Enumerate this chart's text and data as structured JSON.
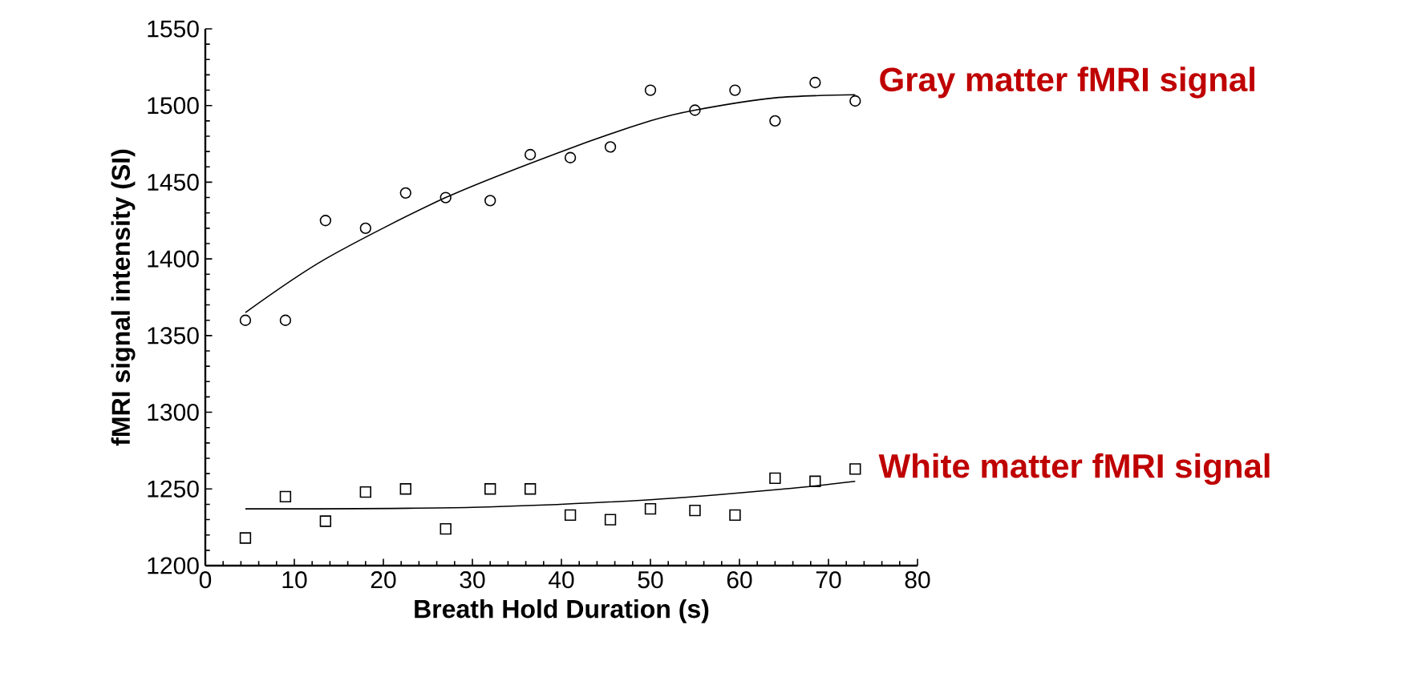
{
  "chart_data": {
    "type": "scatter",
    "xlabel": "Breath Hold Duration (s)",
    "ylabel": "fMRI signal intensity (SI)",
    "xlim": [
      0,
      80
    ],
    "xticks": [
      0,
      10,
      20,
      30,
      40,
      50,
      60,
      70,
      80
    ],
    "ylim": [
      1200,
      1550
    ],
    "yticks": [
      1200,
      1250,
      1300,
      1350,
      1400,
      1450,
      1500,
      1550
    ],
    "grid": false,
    "legend": false,
    "series": [
      {
        "name": "Gray matter fMRI signal",
        "marker": "circle",
        "color": "#000000",
        "x": [
          4.5,
          9,
          13.5,
          18,
          22.5,
          27,
          32,
          36.5,
          41,
          45.5,
          50,
          55,
          59.5,
          64,
          68.5,
          73
        ],
        "values": [
          1360,
          1360,
          1425,
          1420,
          1443,
          1440,
          1438,
          1468,
          1466,
          1473,
          1510,
          1497,
          1510,
          1490,
          1515,
          1503
        ]
      },
      {
        "type": "line",
        "marker": "none",
        "color": "#000000",
        "x": [
          4.5,
          13.5,
          27,
          40,
          50,
          55,
          64,
          73
        ],
        "values": [
          1365,
          1400,
          1440,
          1470,
          1490,
          1497,
          1505,
          1507
        ]
      },
      {
        "name": "White matter fMRI signal",
        "marker": "square",
        "color": "#000000",
        "x": [
          4.5,
          9,
          13.5,
          18,
          22.5,
          27,
          32,
          36.5,
          41,
          45.5,
          50,
          55,
          59.5,
          64,
          68.5,
          73
        ],
        "values": [
          1218,
          1245,
          1229,
          1248,
          1250,
          1224,
          1250,
          1250,
          1233,
          1230,
          1237,
          1236,
          1233,
          1257,
          1255,
          1263
        ]
      },
      {
        "type": "line",
        "marker": "none",
        "color": "#000000",
        "x": [
          4.5,
          30,
          50,
          65,
          73
        ],
        "values": [
          1237,
          1238,
          1243,
          1250,
          1255
        ]
      }
    ]
  }
}
